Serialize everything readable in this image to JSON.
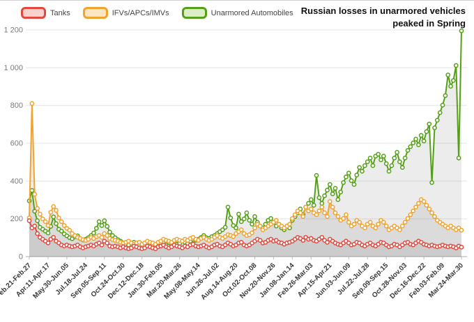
{
  "title": {
    "line1": "Russian losses in unarmored vehicles",
    "line2": "peaked in Spring"
  },
  "legend": [
    {
      "label": "Tanks",
      "color": "#e2483d",
      "fill": "#f9d2cd"
    },
    {
      "label": "IFVs/APCs/IMVs",
      "color": "#f0a32f",
      "fill": "#fce6c2"
    },
    {
      "label": "Unarmored Automobiles",
      "color": "#56a019",
      "fill": "#ddedc6"
    }
  ],
  "chart_data": {
    "type": "line",
    "title": "Russian losses in unarmored vehicles peaked in Spring",
    "xlabel": "",
    "ylabel": "",
    "ylim": [
      0,
      1200
    ],
    "yticks": [
      0,
      200,
      400,
      600,
      800,
      1000,
      1200
    ],
    "ytick_labels": [
      "0",
      "200",
      "400",
      "600",
      "800",
      "1 000",
      "1 200"
    ],
    "grid": "horizontal",
    "legend_position": "top-left",
    "x_tick_every": 7,
    "x_tick_labels": [
      "Feb.21-Feb.27",
      "Apr.11-Apr.17",
      "May.30-Jun.05",
      "Jul.18-Jul.24",
      "Sep.05-Sep.11",
      "Oct.24-Oct.30",
      "Dec.12-Dec.18",
      "Jan.30-Feb.05",
      "Mar.20-Mar.26",
      "May.08-May.14",
      "Jun.26-Jul.02",
      "Aug.14-Aug.20",
      "Oct.02-Oct.08",
      "Nov.20-Nov.26",
      "Jan.08-Jan.14",
      "Feb.26-Mar.03",
      "Apr.15-Apr.21",
      "Jun.03-Jun.09",
      "Jul.22-Jul.28",
      "Sep.09-Sep.15",
      "Oct.28-Nov.03",
      "Dec.16-Dec.22",
      "Feb.03-Feb.09",
      "Mar.24-Mar.30"
    ],
    "series": [
      {
        "name": "Tanks",
        "color": "#e2483d",
        "values": [
          190,
          152,
          162,
          122,
          102,
          92,
          82,
          72,
          92,
          102,
          82,
          72,
          62,
          56,
          62,
          56,
          52,
          56,
          62,
          52,
          46,
          52,
          56,
          62,
          56,
          66,
          72,
          62,
          82,
          72,
          56,
          52,
          56,
          52,
          46,
          52,
          46,
          42,
          46,
          56,
          52,
          46,
          42,
          46,
          56,
          52,
          46,
          42,
          52,
          56,
          62,
          52,
          46,
          52,
          62,
          56,
          52,
          46,
          56,
          52,
          62,
          66,
          56,
          52,
          56,
          62,
          52,
          46,
          52,
          62,
          66,
          56,
          52,
          62,
          72,
          66,
          56,
          62,
          72,
          76,
          62,
          56,
          62,
          72,
          82,
          92,
          86,
          72,
          76,
          86,
          92,
          82,
          86,
          76,
          72,
          66,
          72,
          76,
          82,
          92,
          102,
          96,
          86,
          102,
          92,
          96,
          86,
          82,
          92,
          102,
          86,
          76,
          92,
          82,
          72,
          66,
          62,
          72,
          82,
          72,
          62,
          66,
          76,
          72,
          62,
          56,
          66,
          72,
          62,
          56,
          66,
          76,
          72,
          62,
          52,
          56,
          66,
          62,
          52,
          62,
          72,
          76,
          66,
          62,
          72,
          82,
          76,
          66,
          62,
          56,
          62,
          56,
          52,
          56,
          62,
          56,
          52,
          56,
          52,
          46,
          56,
          50
        ]
      },
      {
        "name": "IFVs/APCs/IMVs",
        "color": "#f0a32f",
        "values": [
          205,
          810,
          330,
          255,
          225,
          200,
          185,
          165,
          235,
          265,
          245,
          205,
          185,
          165,
          150,
          140,
          122,
          112,
          102,
          96,
          90,
          86,
          92,
          102,
          96,
          106,
          112,
          102,
          122,
          112,
          96,
          90,
          86,
          82,
          76,
          72,
          76,
          82,
          72,
          66,
          72,
          76,
          66,
          72,
          82,
          76,
          72,
          66,
          76,
          82,
          92,
          86,
          82,
          76,
          86,
          92,
          86,
          82,
          92,
          86,
          96,
          102,
          92,
          86,
          96,
          102,
          92,
          86,
          92,
          102,
          112,
          102,
          96,
          106,
          116,
          112,
          106,
          122,
          132,
          142,
          122,
          112,
          116,
          126,
          152,
          172,
          162,
          142,
          152,
          162,
          172,
          182,
          192,
          172,
          162,
          152,
          162,
          172,
          202,
          222,
          242,
          232,
          212,
          262,
          242,
          252,
          232,
          222,
          242,
          262,
          232,
          212,
          292,
          262,
          232,
          212,
          192,
          202,
          222,
          182,
          162,
          172,
          192,
          182,
          162,
          152,
          172,
          182,
          162,
          152,
          172,
          192,
          182,
          162,
          142,
          152,
          162,
          152,
          142,
          162,
          182,
          202,
          222,
          242,
          262,
          282,
          302,
          292,
          272,
          252,
          232,
          212,
          192,
          182,
          172,
          162,
          152,
          162,
          152,
          142,
          152,
          140
        ]
      },
      {
        "name": "Unarmored Automobiles",
        "color": "#56a019",
        "values": [
          295,
          350,
          240,
          190,
          155,
          145,
          135,
          125,
          160,
          210,
          175,
          145,
          135,
          120,
          110,
          100,
          95,
          105,
          110,
          95,
          88,
          92,
          100,
          112,
          125,
          150,
          185,
          165,
          190,
          160,
          130,
          112,
          100,
          90,
          82,
          72,
          66,
          62,
          72,
          76,
          66,
          60,
          56,
          62,
          72,
          66,
          60,
          56,
          62,
          66,
          72,
          62,
          56,
          60,
          72,
          66,
          70,
          82,
          76,
          70,
          82,
          92,
          86,
          92,
          102,
          112,
          100,
          96,
          106,
          112,
          122,
          132,
          142,
          155,
          262,
          205,
          165,
          152,
          225,
          185,
          200,
          232,
          192,
          172,
          212,
          182,
          162,
          152,
          172,
          192,
          202,
          182,
          162,
          172,
          152,
          142,
          162,
          152,
          192,
          212,
          232,
          252,
          222,
          262,
          282,
          302,
          272,
          430,
          312,
          282,
          322,
          352,
          382,
          332,
          362,
          302,
          342,
          392,
          422,
          442,
          402,
          382,
          432,
          472,
          452,
          482,
          502,
          522,
          482,
          532,
          542,
          512,
          532,
          492,
          452,
          482,
          522,
          552,
          502,
          472,
          522,
          562,
          582,
          602,
          622,
          592,
          642,
          612,
          662,
          702,
          392,
          682,
          722,
          762,
          802,
          852,
          962,
          902,
          932,
          1012,
          522,
          1195
        ]
      }
    ]
  }
}
